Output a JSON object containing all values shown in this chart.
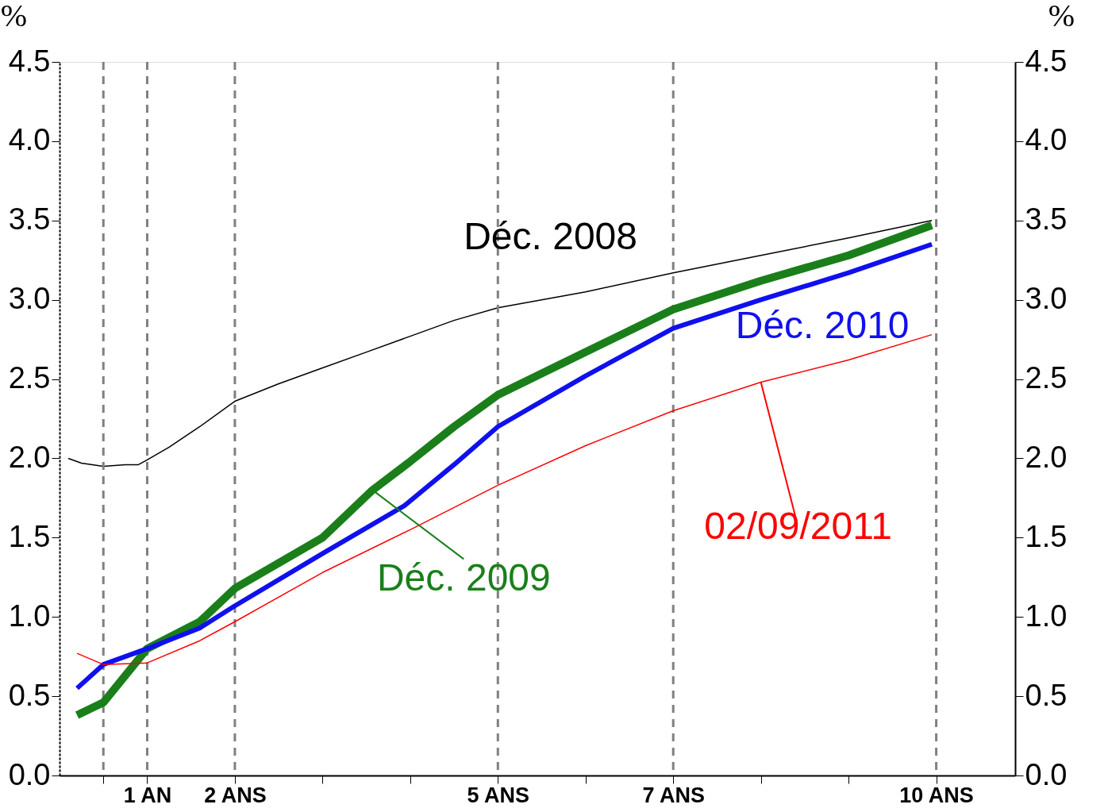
{
  "chart_data": {
    "type": "line",
    "ylabel": "%",
    "y2label": "%",
    "xlim": [
      0,
      10.9
    ],
    "xticks": [
      {
        "value": 0.5,
        "label": null
      },
      {
        "value": 1,
        "label": "1 AN"
      },
      {
        "value": 2,
        "label": "2 ANS"
      },
      {
        "value": 3,
        "label": null
      },
      {
        "value": 4,
        "label": null
      },
      {
        "value": 5,
        "label": "5 ANS"
      },
      {
        "value": 6,
        "label": null
      },
      {
        "value": 7,
        "label": "7 ANS"
      },
      {
        "value": 8,
        "label": null
      },
      {
        "value": 9,
        "label": null
      },
      {
        "value": 10,
        "label": "10 ANS"
      }
    ],
    "ylim": [
      0,
      4.5
    ],
    "yticks": [
      {
        "value": 0,
        "label": "0.0"
      },
      {
        "value": 0.5,
        "label": "0.5"
      },
      {
        "value": 1,
        "label": "1.0"
      },
      {
        "value": 1.5,
        "label": "1.5"
      },
      {
        "value": 2,
        "label": "2.0"
      },
      {
        "value": 2.5,
        "label": "2.5"
      },
      {
        "value": 3,
        "label": "3.0"
      },
      {
        "value": 3.5,
        "label": "3.5"
      },
      {
        "value": 4,
        "label": "4.0"
      },
      {
        "value": 4.5,
        "label": "4.5"
      }
    ],
    "y2lim": [
      0,
      4.5
    ],
    "y2ticks": [
      {
        "value": 0,
        "label": "0.0"
      },
      {
        "value": 0.5,
        "label": "0.5"
      },
      {
        "value": 1,
        "label": "1.0"
      },
      {
        "value": 1.5,
        "label": "1.5"
      },
      {
        "value": 2,
        "label": "2.0"
      },
      {
        "value": 2.5,
        "label": "2.5"
      },
      {
        "value": 3,
        "label": "3.0"
      },
      {
        "value": 3.5,
        "label": "3.5"
      },
      {
        "value": 4,
        "label": "4.0"
      },
      {
        "value": 4.5,
        "label": "4.5"
      }
    ],
    "grid": false,
    "marker": "none",
    "line_style": "solid",
    "series": [
      {
        "color": "#000000",
        "x": [
          0.1,
          0.25,
          0.5,
          0.75,
          0.9,
          1,
          1.25,
          1.6,
          2,
          2.5,
          3,
          3.5,
          4,
          4.5,
          5,
          6,
          7,
          8,
          9,
          9.95
        ],
        "values": [
          2.0,
          1.97,
          1.95,
          1.96,
          1.96,
          1.99,
          2.07,
          2.2,
          2.36,
          2.47,
          2.57,
          2.67,
          2.77,
          2.87,
          2.95,
          3.05,
          3.17,
          3.28,
          3.39,
          3.5
        ]
      },
      {
        "color": "#1a7f1a",
        "x": [
          0.2,
          0.5,
          1,
          1.6,
          2,
          3,
          3.57,
          4,
          4.5,
          5,
          6,
          7,
          8,
          9,
          9.95
        ],
        "values": [
          0.38,
          0.46,
          0.8,
          0.97,
          1.18,
          1.5,
          1.8,
          1.98,
          2.2,
          2.4,
          2.67,
          2.94,
          3.12,
          3.28,
          3.47
        ]
      },
      {
        "color": "#1010ee",
        "x": [
          0.2,
          0.5,
          1,
          1.6,
          2,
          3,
          3.93,
          4.5,
          5,
          6,
          7,
          8,
          9,
          9.95
        ],
        "values": [
          0.55,
          0.7,
          0.8,
          0.93,
          1.07,
          1.4,
          1.7,
          1.96,
          2.2,
          2.52,
          2.82,
          3.0,
          3.17,
          3.35
        ]
      },
      {
        "color": "#ff0000",
        "x": [
          0.2,
          0.5,
          1,
          1.6,
          2,
          3,
          4,
          5,
          6,
          7,
          8,
          9,
          9.95
        ],
        "values": [
          0.77,
          0.7,
          0.71,
          0.85,
          0.97,
          1.28,
          1.55,
          1.83,
          2.08,
          2.3,
          2.48,
          2.62,
          2.78
        ]
      }
    ],
    "annotations": [
      {
        "text": "Déc. 2008",
        "x": 5.6,
        "y": 3.0
      },
      {
        "text": "Déc. 2009",
        "x": 3.57,
        "y": 1.8
      },
      {
        "text": "Déc. 2010",
        "x": 9,
        "y": 3.17
      },
      {
        "text": "02/09/2011",
        "x": 8,
        "y": 2.48
      }
    ],
    "ref_lines": [
      {
        "axis": "x",
        "value": 0.5,
        "label": null,
        "color": "#808080",
        "line_style": "dashed"
      },
      {
        "axis": "x",
        "value": 1,
        "label": null,
        "color": "#808080",
        "line_style": "dashed"
      },
      {
        "axis": "x",
        "value": 2,
        "label": null,
        "color": "#808080",
        "line_style": "dashed"
      },
      {
        "axis": "x",
        "value": 5,
        "label": null,
        "color": "#808080",
        "line_style": "dashed"
      },
      {
        "axis": "x",
        "value": 7,
        "label": null,
        "color": "#808080",
        "line_style": "dashed"
      },
      {
        "axis": "x",
        "value": 10,
        "label": null,
        "color": "#808080",
        "line_style": "dashed"
      }
    ]
  }
}
